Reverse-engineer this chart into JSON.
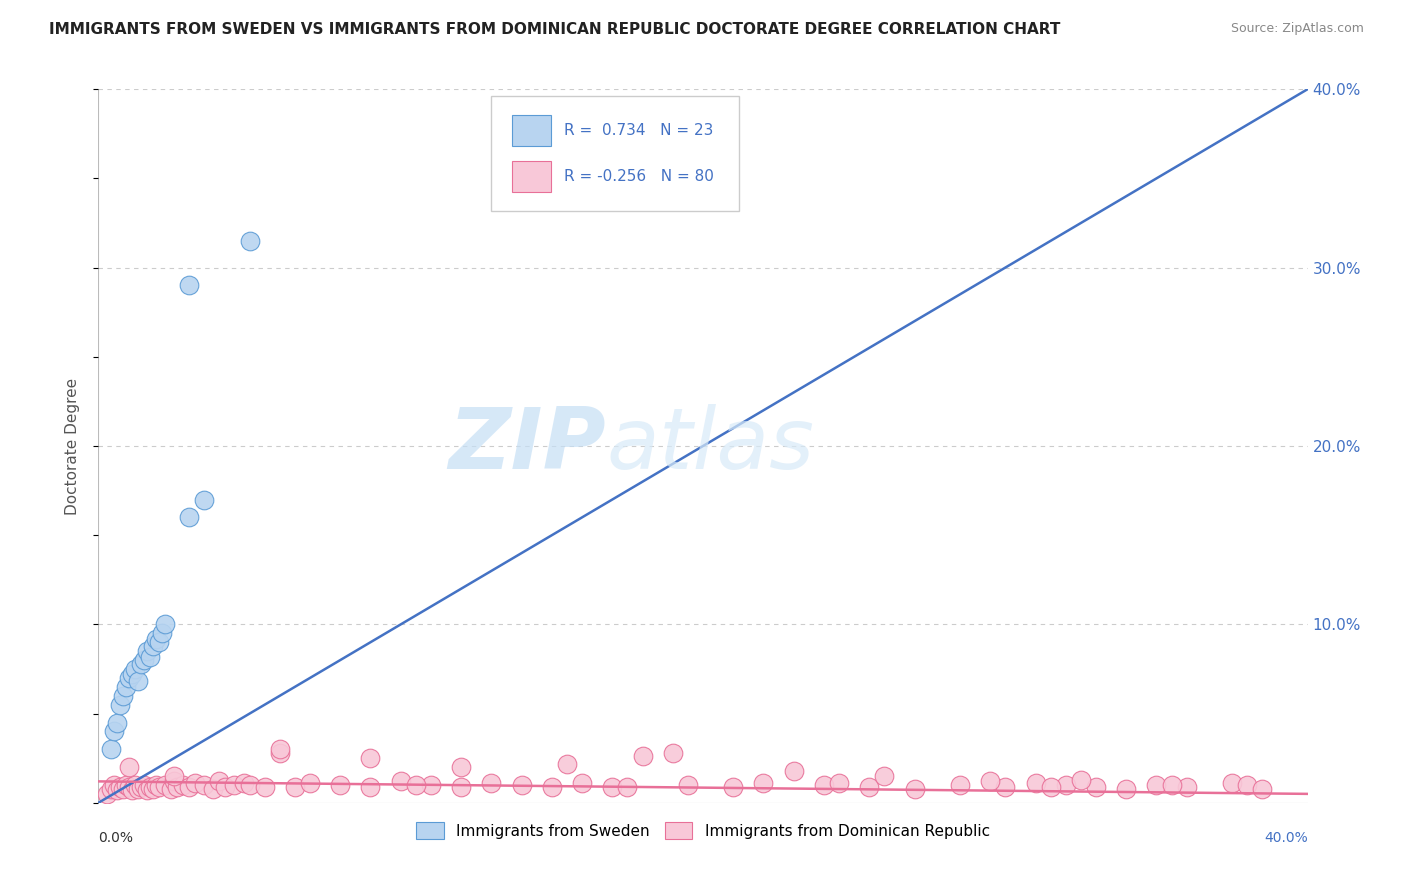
{
  "title": "IMMIGRANTS FROM SWEDEN VS IMMIGRANTS FROM DOMINICAN REPUBLIC DOCTORATE DEGREE CORRELATION CHART",
  "source": "Source: ZipAtlas.com",
  "ylabel": "Doctorate Degree",
  "xlim": [
    0.0,
    0.4
  ],
  "ylim": [
    0.0,
    0.4
  ],
  "yticks": [
    0.0,
    0.1,
    0.2,
    0.3,
    0.4
  ],
  "ytick_labels": [
    "",
    "10.0%",
    "20.0%",
    "30.0%",
    "40.0%"
  ],
  "sweden_color": "#b8d4f0",
  "sweden_edge_color": "#5b9bd5",
  "dr_color": "#f8c8d8",
  "dr_edge_color": "#e87098",
  "trend_sweden_color": "#4472c4",
  "trend_dr_color": "#e87098",
  "background_color": "#ffffff",
  "grid_color": "#cccccc",
  "watermark_zip": "ZIP",
  "watermark_atlas": "atlas",
  "title_fontsize": 11,
  "source_fontsize": 9,
  "sweden_x": [
    0.004,
    0.005,
    0.006,
    0.007,
    0.008,
    0.009,
    0.01,
    0.011,
    0.012,
    0.013,
    0.014,
    0.015,
    0.016,
    0.017,
    0.018,
    0.019,
    0.02,
    0.021,
    0.022,
    0.03,
    0.035,
    0.03,
    0.05
  ],
  "sweden_y": [
    0.03,
    0.04,
    0.045,
    0.055,
    0.06,
    0.065,
    0.07,
    0.072,
    0.075,
    0.068,
    0.078,
    0.08,
    0.085,
    0.082,
    0.088,
    0.092,
    0.09,
    0.095,
    0.1,
    0.16,
    0.17,
    0.29,
    0.315
  ],
  "dr_x": [
    0.003,
    0.004,
    0.005,
    0.006,
    0.007,
    0.008,
    0.009,
    0.01,
    0.011,
    0.012,
    0.013,
    0.014,
    0.015,
    0.016,
    0.017,
    0.018,
    0.019,
    0.02,
    0.022,
    0.024,
    0.025,
    0.026,
    0.028,
    0.03,
    0.032,
    0.035,
    0.038,
    0.04,
    0.042,
    0.045,
    0.048,
    0.05,
    0.055,
    0.06,
    0.065,
    0.07,
    0.08,
    0.09,
    0.1,
    0.11,
    0.12,
    0.13,
    0.14,
    0.15,
    0.16,
    0.17,
    0.18,
    0.195,
    0.21,
    0.22,
    0.24,
    0.255,
    0.27,
    0.285,
    0.3,
    0.31,
    0.32,
    0.33,
    0.34,
    0.35,
    0.36,
    0.375,
    0.38,
    0.06,
    0.09,
    0.12,
    0.155,
    0.19,
    0.23,
    0.26,
    0.295,
    0.325,
    0.355,
    0.385,
    0.105,
    0.175,
    0.245,
    0.315,
    0.01,
    0.025
  ],
  "dr_y": [
    0.005,
    0.008,
    0.01,
    0.007,
    0.009,
    0.008,
    0.01,
    0.009,
    0.007,
    0.01,
    0.008,
    0.009,
    0.01,
    0.007,
    0.009,
    0.008,
    0.01,
    0.009,
    0.01,
    0.008,
    0.012,
    0.009,
    0.01,
    0.009,
    0.011,
    0.01,
    0.008,
    0.012,
    0.009,
    0.01,
    0.011,
    0.01,
    0.009,
    0.028,
    0.009,
    0.011,
    0.01,
    0.009,
    0.012,
    0.01,
    0.009,
    0.011,
    0.01,
    0.009,
    0.011,
    0.009,
    0.026,
    0.01,
    0.009,
    0.011,
    0.01,
    0.009,
    0.008,
    0.01,
    0.009,
    0.011,
    0.01,
    0.009,
    0.008,
    0.01,
    0.009,
    0.011,
    0.01,
    0.03,
    0.025,
    0.02,
    0.022,
    0.028,
    0.018,
    0.015,
    0.012,
    0.013,
    0.01,
    0.008,
    0.01,
    0.009,
    0.011,
    0.009,
    0.02,
    0.015
  ],
  "trend_sw_x0": 0.0,
  "trend_sw_y0": 0.0,
  "trend_sw_x1": 0.4,
  "trend_sw_y1": 0.4,
  "trend_dr_x0": 0.0,
  "trend_dr_y0": 0.012,
  "trend_dr_x1": 0.4,
  "trend_dr_y1": 0.005
}
